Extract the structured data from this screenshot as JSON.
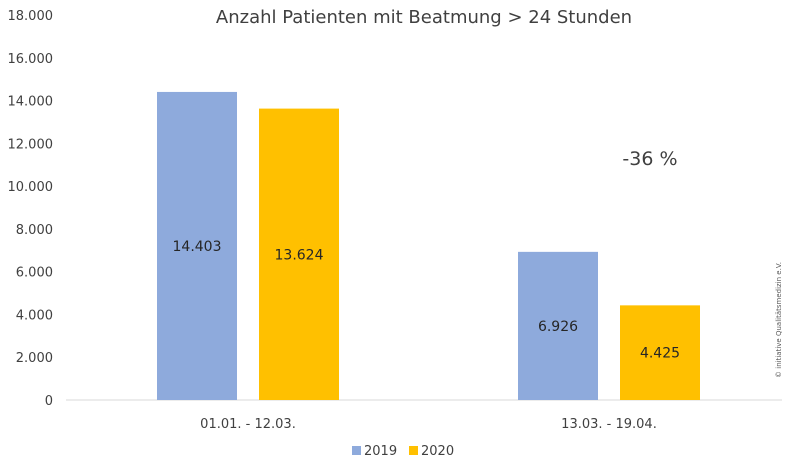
{
  "chart_data": {
    "type": "bar",
    "title": "Anzahl Patienten mit Beatmung > 24 Stunden",
    "categories": [
      "01.01. - 12.03.",
      "13.03. - 19.04."
    ],
    "series": [
      {
        "name": "2019",
        "values": [
          14403,
          6926
        ],
        "labels": [
          "14.403",
          "6.926"
        ],
        "color": "#8eaadc"
      },
      {
        "name": "2020",
        "values": [
          13624,
          4425
        ],
        "labels": [
          "13.624",
          "4.425"
        ],
        "color": "#ffc000"
      }
    ],
    "y_ticks": [
      "0",
      "2.000",
      "4.000",
      "6.000",
      "8.000",
      "10.000",
      "12.000",
      "14.000",
      "16.000",
      "18.000"
    ],
    "ylim": [
      0,
      18000
    ],
    "grid": false,
    "legend_position": "bottom",
    "annotation": "-36 %",
    "credit": "© initiative Qualitätsmedizin e.V."
  }
}
